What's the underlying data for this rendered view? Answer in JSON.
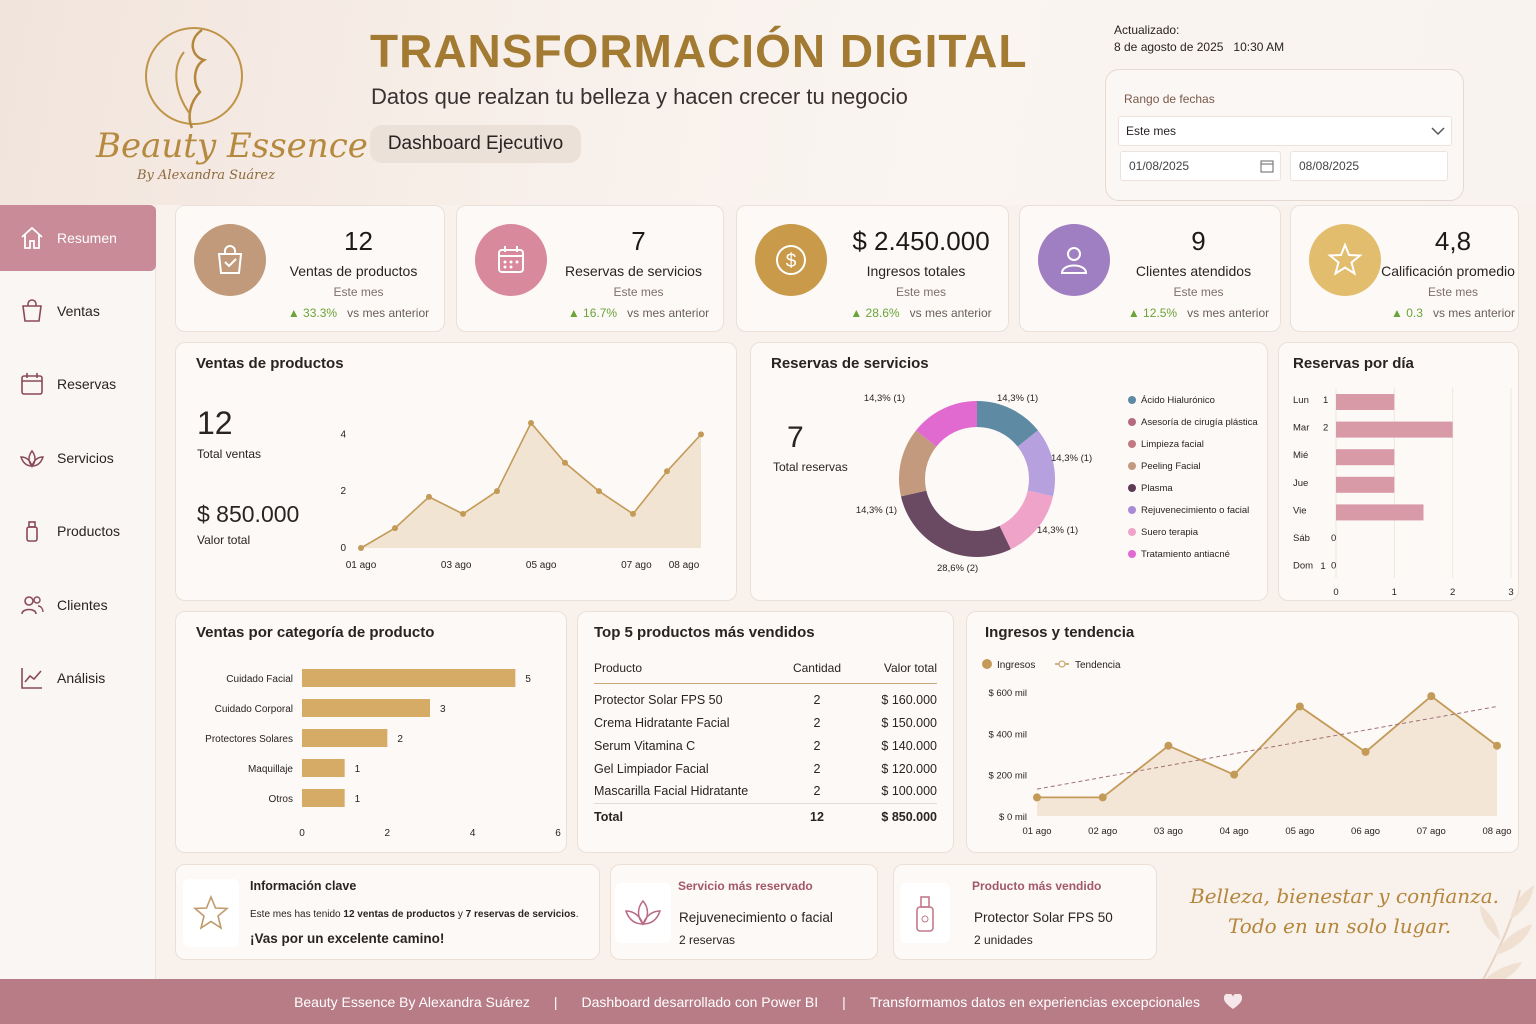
{
  "brand": {
    "name": "Beauty Essence",
    "byline": "By Alexandra Suárez"
  },
  "header": {
    "title": "TRANSFORMACIÓN DIGITAL",
    "subtitle": "Datos que realzan tu belleza y hacen crecer tu negocio",
    "badge": "Dashboard Ejecutivo",
    "updated_label": "Actualizado:",
    "updated_value": "8 de agosto de 2025   10:30 AM"
  },
  "date_range": {
    "label": "Rango de fechas",
    "selected": "Este mes",
    "from": "01/08/2025",
    "to": "08/08/2025"
  },
  "nav": [
    {
      "label": "Resumen",
      "icon": "home-icon"
    },
    {
      "label": "Ventas",
      "icon": "shopping-bag-icon"
    },
    {
      "label": "Reservas",
      "icon": "calendar-icon"
    },
    {
      "label": "Servicios",
      "icon": "lotus-icon"
    },
    {
      "label": "Productos",
      "icon": "bottle-icon"
    },
    {
      "label": "Clientes",
      "icon": "users-icon"
    },
    {
      "label": "Análisis",
      "icon": "chart-icon"
    }
  ],
  "kpis": [
    {
      "value": "12",
      "label": "Ventas de productos",
      "period": "Este mes",
      "delta": "▲ 33.3%",
      "compare": "vs mes anterior",
      "icon": "shopping-bag-icon",
      "color": "#c09a7a"
    },
    {
      "value": "7",
      "label": "Reservas de servicios",
      "period": "Este mes",
      "delta": "▲ 16.7%",
      "compare": "vs mes anterior",
      "icon": "calendar-icon",
      "color": "#d88a9c"
    },
    {
      "value": "$ 2.450.000",
      "label": "Ingresos totales",
      "period": "Este mes",
      "delta": "▲ 28.6%",
      "compare": "vs mes anterior",
      "icon": "dollar-icon",
      "color": "#c89a4a"
    },
    {
      "value": "9",
      "label": "Clientes atendidos",
      "period": "Este mes",
      "delta": "▲ 12.5%",
      "compare": "vs mes anterior",
      "icon": "user-icon",
      "color": "#a07ec2"
    },
    {
      "value": "4,8",
      "label": "Calificación promedio",
      "period": "Este mes",
      "delta": "▲ 0.3",
      "compare": "vs mes anterior",
      "icon": "star-icon",
      "color": "#e3bd6e"
    }
  ],
  "sales_panel": {
    "title": "Ventas de productos",
    "total": "12",
    "total_label": "Total ventas",
    "value": "$ 850.000",
    "value_label": "Valor total"
  },
  "bookings_panel": {
    "title": "Reservas de servicios",
    "total": "7",
    "total_label": "Total reservas"
  },
  "daily_panel": {
    "title": "Reservas por día"
  },
  "category_panel": {
    "title": "Ventas por categoría de producto"
  },
  "top5": {
    "title": "Top 5 productos más vendidos",
    "headers": [
      "Producto",
      "Cantidad",
      "Valor total"
    ],
    "rows": [
      [
        "Protector Solar FPS 50",
        "2",
        "$ 160.000"
      ],
      [
        "Crema Hidratante Facial",
        "2",
        "$ 150.000"
      ],
      [
        "Serum Vitamina C",
        "2",
        "$ 140.000"
      ],
      [
        "Gel Limpiador Facial",
        "2",
        "$ 120.000"
      ],
      [
        "Mascarilla Facial Hidratante",
        "2",
        "$ 100.000"
      ]
    ],
    "total": [
      "Total",
      "12",
      "$ 850.000"
    ]
  },
  "revenue_panel": {
    "title": "Ingresos y tendencia"
  },
  "chart_data": [
    {
      "type": "area",
      "title": "Ventas de productos",
      "x_ticks": [
        "01 ago",
        "03 ago",
        "05 ago",
        "07 ago",
        "08 ago"
      ],
      "ylim": [
        0,
        4
      ],
      "y_ticks": [
        "0",
        "2",
        "4"
      ],
      "x": [
        0,
        1,
        2,
        3,
        4,
        5,
        6,
        7,
        8,
        9,
        10
      ],
      "values": [
        0,
        0.7,
        1.8,
        1.2,
        2,
        4.4,
        3,
        2,
        1.2,
        2.7,
        4
      ]
    },
    {
      "type": "pie",
      "title": "Reservas de servicios",
      "categories": [
        "Ácido Hialurónico",
        "Asesoría de cirugía plástica",
        "Limpieza facial",
        "Peeling Facial",
        "Plasma",
        "Rejuvenecimiento o facial",
        "Suero terapia",
        "Tratamiento antiacné"
      ],
      "colors": [
        "#5e8aa3",
        "#b56a82",
        "#c27a82",
        "#c49a7e",
        "#5e3a54",
        "#a98ad6",
        "#f0a3c8",
        "#e06ad0"
      ],
      "slices": [
        {
          "color": "#5e8aa3",
          "value": 1,
          "label": "14,3% (1)"
        },
        {
          "color": "#b7a0de",
          "value": 1,
          "label": "14,3% (1)"
        },
        {
          "color": "#f0a3c8",
          "value": 1,
          "label": "14,3% (1)"
        },
        {
          "color": "#6a4a62",
          "value": 2,
          "label": "28,6% (2)"
        },
        {
          "color": "#c49a7e",
          "value": 1,
          "label": "14,3% (1)"
        },
        {
          "color": "#e06ad0",
          "value": 1,
          "label": "14,3% (1)"
        }
      ]
    },
    {
      "type": "bar",
      "title": "Reservas por día",
      "categories": [
        "Lun",
        "Mar",
        "Mié",
        "Jue",
        "Vie",
        "Sáb",
        "Dom"
      ],
      "values": [
        1,
        2,
        1,
        1,
        1.5,
        0,
        0
      ],
      "labels": [
        "1",
        "2",
        "",
        "",
        "",
        "0",
        "0"
      ],
      "extra_label": "1",
      "x_ticks": [
        "0",
        "1",
        "2",
        "3"
      ],
      "xlim": [
        0,
        3
      ]
    },
    {
      "type": "bar",
      "title": "Ventas por categoría de producto",
      "categories": [
        "Cuidado Facial",
        "Cuidado Corporal",
        "Protectores Solares",
        "Maquillaje",
        "Otros"
      ],
      "values": [
        5,
        3,
        2,
        1,
        1
      ],
      "x_ticks": [
        "0",
        "2",
        "4",
        "6"
      ],
      "xlim": [
        0,
        6
      ]
    },
    {
      "type": "line",
      "title": "Ingresos y tendencia",
      "series": [
        {
          "name": "Ingresos",
          "values": [
            90000,
            90000,
            340000,
            200000,
            530000,
            310000,
            580000,
            340000
          ]
        },
        {
          "name": "Tendencia",
          "values": [
            130000,
            187000,
            244000,
            301000,
            358000,
            415000,
            472000,
            530000
          ]
        }
      ],
      "x_ticks": [
        "01 ago",
        "02 ago",
        "03 ago",
        "04 ago",
        "05 ago",
        "06 ago",
        "07 ago",
        "08 ago"
      ],
      "y_ticks": [
        "$ 0 mil",
        "$ 200 mil",
        "$ 400 mil",
        "$ 600 mil"
      ],
      "ylim": [
        0,
        600000
      ]
    }
  ],
  "insights": {
    "title": "Información clave",
    "text_pre": "Este mes has tenido ",
    "text_b1": "12 ventas de productos",
    "text_mid": " y ",
    "text_b2": "7 reservas de servicios",
    "text_end": ".",
    "cheer": "¡Vas por un excelente camino!",
    "top_service_label": "Servicio más reservado",
    "top_service": "Rejuvenecimiento o facial",
    "top_service_count": "2 reservas",
    "top_product_label": "Producto más vendido",
    "top_product": "Protector Solar FPS 50",
    "top_product_count": "2 unidades",
    "quote1": "Belleza, bienestar y confianza.",
    "quote2": "Todo en un solo lugar."
  },
  "footer": {
    "a": "Beauty Essence By Alexandra Suárez",
    "sep": "|",
    "b": "Dashboard desarrollado con Power BI",
    "c": "Transformamos datos en experiencias excepcionales"
  }
}
